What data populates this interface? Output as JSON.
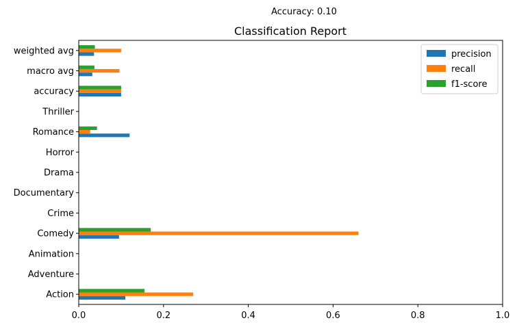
{
  "suptitle": "Accuracy: 0.10",
  "chart_data": {
    "type": "bar",
    "orientation": "horizontal",
    "title": "Classification Report",
    "categories": [
      "Action",
      "Adventure",
      "Animation",
      "Comedy",
      "Crime",
      "Documentary",
      "Drama",
      "Horror",
      "Romance",
      "Thriller",
      "accuracy",
      "macro avg",
      "weighted avg"
    ],
    "series": [
      {
        "name": "precision",
        "color": "#1f77b4",
        "values": [
          0.11,
          0,
          0,
          0.095,
          0,
          0,
          0,
          0,
          0.12,
          0,
          0.1,
          0.032,
          0.036
        ]
      },
      {
        "name": "recall",
        "color": "#ff7f0e",
        "values": [
          0.27,
          0,
          0,
          0.66,
          0,
          0,
          0,
          0,
          0.027,
          0,
          0.1,
          0.096,
          0.1
        ]
      },
      {
        "name": "f1-score",
        "color": "#2ca02c",
        "values": [
          0.155,
          0,
          0,
          0.17,
          0,
          0,
          0,
          0,
          0.043,
          0,
          0.1,
          0.037,
          0.038
        ]
      }
    ],
    "xlim": [
      0,
      1
    ],
    "xticks": [
      "0.0",
      "0.2",
      "0.4",
      "0.6",
      "0.8",
      "1.0"
    ],
    "grid": false,
    "legend_position": "top-right"
  }
}
